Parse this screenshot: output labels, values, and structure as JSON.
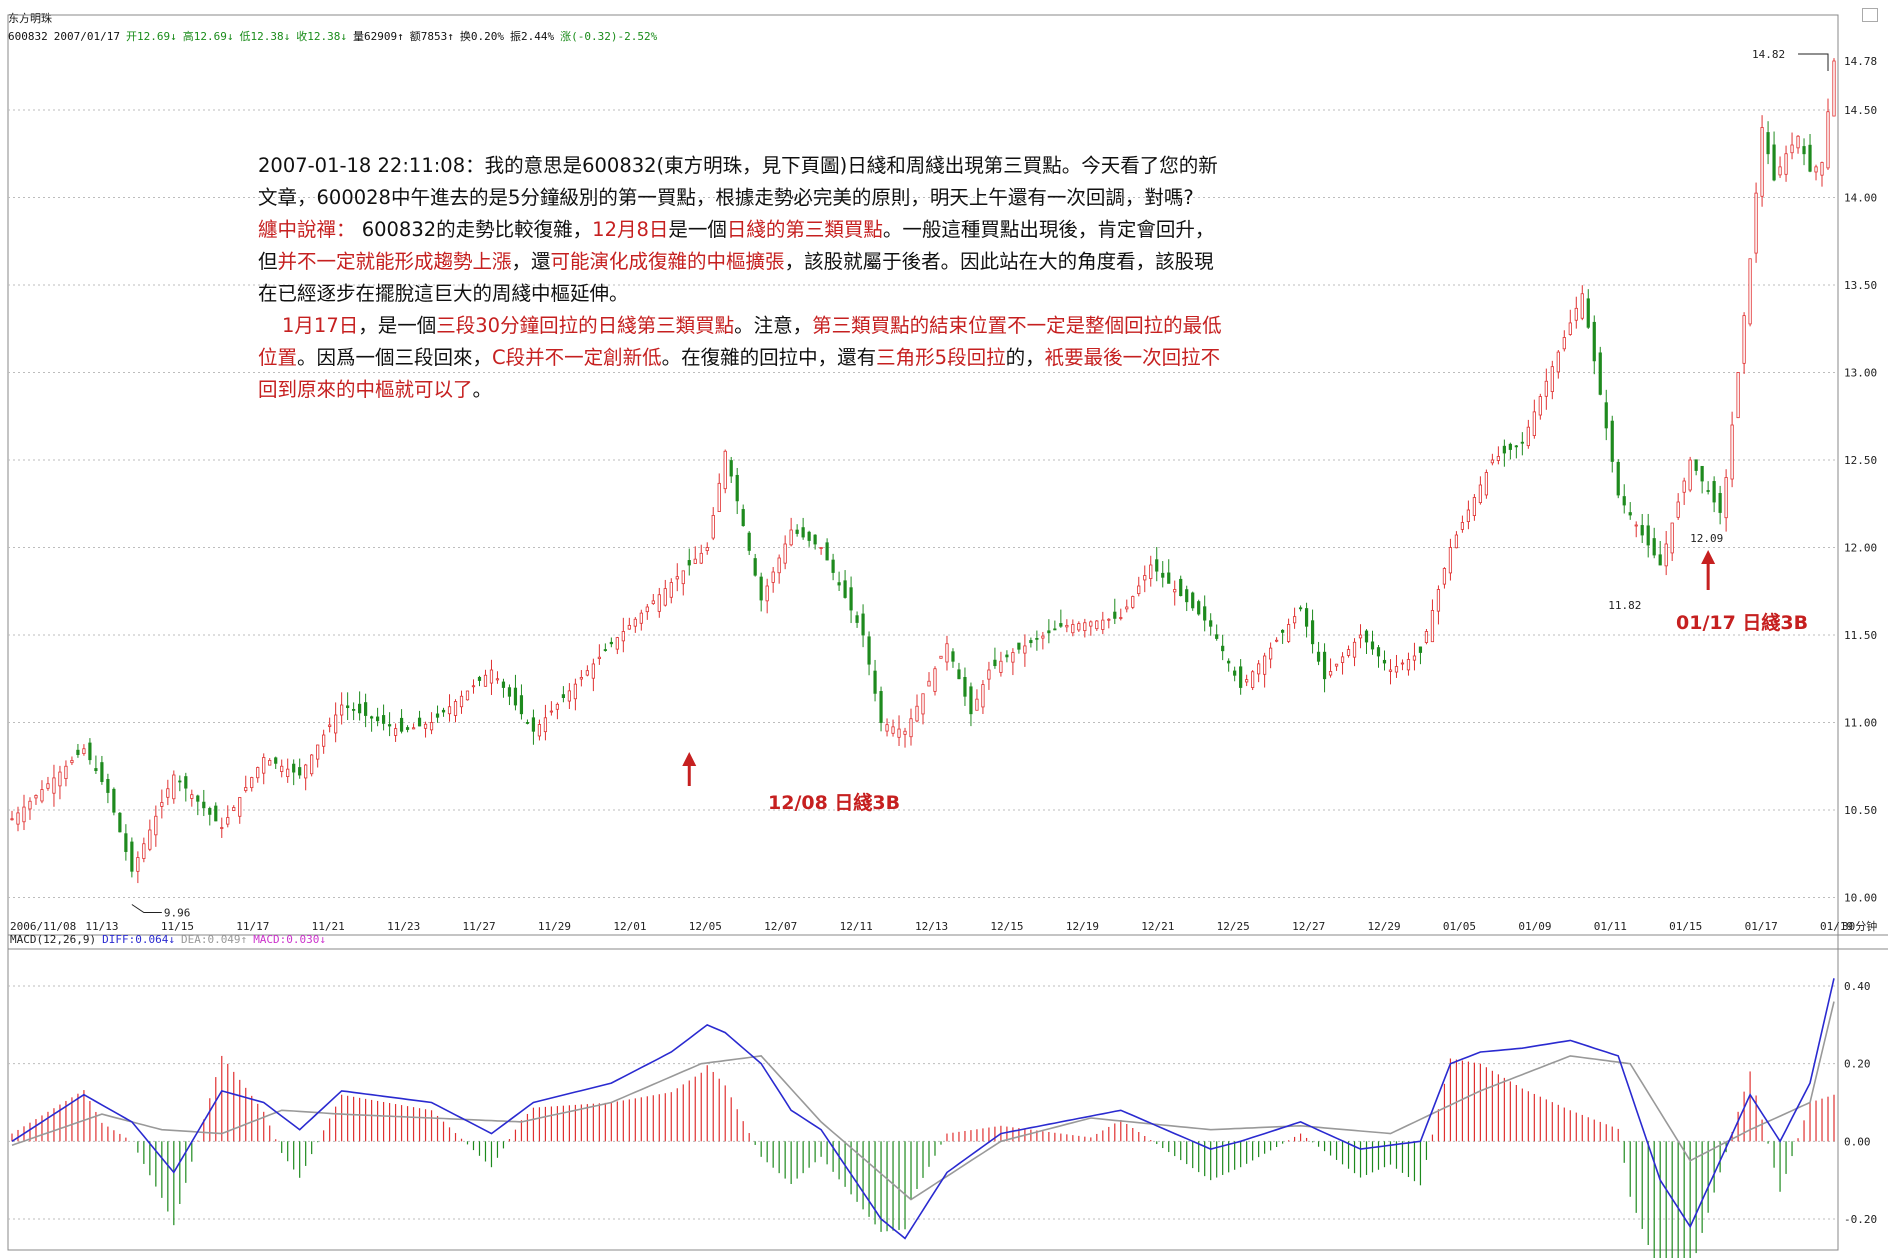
{
  "header": {
    "name": "东方明珠",
    "code": "600832",
    "date": "2007/01/17",
    "open": "开12.69↓",
    "high": "高12.69↓",
    "low": "低12.38↓",
    "close": "收12.38↓",
    "volume": "量62909↑",
    "amount": "额7853↑",
    "turnover": "换0.20%",
    "amplitude": "振2.44%",
    "change": "涨(-0.32)-2.52%"
  },
  "commentary": {
    "line1": "2007-01-18 22:11:08：我的意思是600832(東方明珠，見下頁圖)日綫和周綫出現第三買點。今天看了您的新",
    "line2": "文章，600028中午進去的是5分鐘級別的第一買點，根據走勢必完美的原則，明天上午還有一次回調，對嗎?",
    "line3_red1": "纏中說禪：",
    "line3_black1": " 600832的走勢比較復雜，",
    "line3_red2": "12月8日",
    "line3_black2": "是一個",
    "line3_red3": "日綫的第三類買點",
    "line3_black3": "。一般這種買點出現後，肯定會回升，",
    "line4_black1": "但",
    "line4_red1": "并不一定就能形成趨勢上漲",
    "line4_black2": "，還",
    "line4_red2": "可能演化成復雜的中樞擴張",
    "line4_black3": "，該股就屬于後者。因此站在大的角度看，該股現",
    "line5": "在已經逐步在擺脫這巨大的周綫中樞延伸。",
    "line6_red1": "1月17日",
    "line6_black1": "，是一個",
    "line6_red2": "三段30分鐘回拉的日綫第三類買點",
    "line6_black2": "。注意，",
    "line6_red3": "第三類買點的結束位置不一定是整個回拉的最低",
    "line7_red1": "位置",
    "line7_black1": "。因爲一個三段回來，",
    "line7_red2": "C段并不一定創新低",
    "line7_black2": "。在復雜的回拉中，還有",
    "line7_red3": "三角形5段回拉",
    "line7_black3": "的，",
    "line7_red4": "衹要最後一次回拉不",
    "line8_red1": "回到原來的中樞就可以了",
    "line8_black1": "。"
  },
  "annotations": {
    "buy1": "12/08 日綫3B",
    "buy2": "01/17 日綫3B",
    "low_label": "9.96",
    "mid_low_label": "11.82",
    "low2_label": "12.09",
    "high_label": "14.82",
    "last_label": "14.78"
  },
  "period_label": "30分钟",
  "macd_header": {
    "title": "MACD(12,26,9)",
    "diff": "DIFF:0.064↓",
    "dea": "DEA:0.049↑",
    "macd": "MACD:0.030↓"
  },
  "colors": {
    "up": "#e03030",
    "down": "#1e8a1e",
    "diff": "#2a2ad0",
    "dea": "#999999",
    "grid": "#bdbdbd",
    "callout": "#c62020"
  },
  "chart_data": [
    {
      "type": "candlestick",
      "title": "",
      "y_ticks": [
        "10.00",
        "10.50",
        "11.00",
        "11.50",
        "12.00",
        "12.50",
        "13.00",
        "13.50",
        "14.00",
        "14.50"
      ],
      "ylim": [
        9.9,
        14.9
      ],
      "x_ticks": [
        "2006/11/08",
        "11/13",
        "11/15",
        "11/17",
        "11/21",
        "11/23",
        "11/27",
        "11/29",
        "12/01",
        "12/05",
        "12/07",
        "12/11",
        "12/13",
        "12/15",
        "12/19",
        "12/21",
        "12/25",
        "12/27",
        "12/29",
        "01/05",
        "01/09",
        "01/11",
        "01/15",
        "01/17",
        "01/19"
      ],
      "close_path": {
        "x_index": [
          0,
          12,
          16,
          20,
          27,
          35,
          42,
          48,
          55,
          65,
          70,
          80,
          87,
          100,
          110,
          116,
          119,
          125,
          130,
          135,
          142,
          145,
          149,
          156,
          160,
          163,
          167,
          175,
          185,
          190,
          200,
          205,
          215,
          219,
          225,
          230,
          235,
          240,
          247,
          252,
          256,
          262,
          268,
          275,
          280,
          285
        ],
        "close": [
          10.45,
          10.85,
          10.6,
          10.15,
          10.7,
          10.4,
          10.8,
          10.7,
          11.1,
          10.95,
          11.0,
          11.3,
          10.95,
          11.45,
          11.8,
          12.0,
          12.55,
          11.7,
          12.1,
          12.0,
          11.5,
          11.0,
          10.95,
          11.45,
          11.05,
          11.3,
          11.4,
          11.55,
          11.6,
          11.9,
          11.55,
          11.2,
          11.65,
          11.25,
          11.5,
          11.3,
          11.4,
          12.0,
          12.5,
          12.6,
          12.95,
          13.45,
          12.3,
          11.9,
          12.5,
          12.2
        ]
      },
      "last_bars": {
        "x_index": [
          286,
          288,
          290,
          292,
          294,
          296,
          298,
          300,
          302,
          304
        ],
        "close": [
          12.4,
          13.0,
          13.65,
          14.4,
          14.1,
          14.25,
          14.35,
          14.15,
          14.2,
          14.78
        ]
      },
      "annotations": [
        {
          "text": "9.96",
          "value": 9.96
        },
        {
          "text": "11.82",
          "value": 11.82
        },
        {
          "text": "12.09",
          "value": 12.09
        },
        {
          "text": "14.82",
          "value": 14.82
        },
        {
          "text": "14.78",
          "value": 14.78
        },
        {
          "text": "12/08 日綫3B",
          "date": "12/08"
        },
        {
          "text": "01/17 日綫3B",
          "date": "01/17"
        }
      ]
    },
    {
      "type": "line+bar",
      "title": "MACD(12,26,9)",
      "y_ticks": [
        "0.40",
        "0.20",
        "0.00",
        "-0.20"
      ],
      "ylim": [
        -0.28,
        0.48
      ],
      "series": [
        {
          "name": "DIFF",
          "x_index": [
            0,
            12,
            20,
            27,
            35,
            42,
            48,
            55,
            70,
            80,
            87,
            100,
            110,
            116,
            119,
            125,
            130,
            135,
            145,
            149,
            156,
            165,
            175,
            185,
            200,
            205,
            215,
            225,
            235,
            240,
            245,
            252,
            260,
            268,
            275,
            280,
            285,
            290,
            295,
            300,
            304
          ],
          "values": [
            0.0,
            0.12,
            0.05,
            -0.08,
            0.13,
            0.1,
            0.03,
            0.13,
            0.1,
            0.02,
            0.1,
            0.15,
            0.23,
            0.3,
            0.28,
            0.2,
            0.08,
            0.03,
            -0.2,
            -0.25,
            -0.08,
            0.02,
            0.05,
            0.08,
            -0.02,
            0.0,
            0.05,
            -0.02,
            0.0,
            0.2,
            0.23,
            0.24,
            0.26,
            0.22,
            -0.1,
            -0.22,
            -0.05,
            0.12,
            0.0,
            0.15,
            0.42
          ]
        },
        {
          "name": "DEA",
          "x_index": [
            0,
            15,
            25,
            35,
            45,
            55,
            70,
            85,
            100,
            115,
            125,
            135,
            150,
            165,
            180,
            200,
            215,
            230,
            245,
            260,
            270,
            280,
            290,
            300,
            304
          ],
          "values": [
            -0.01,
            0.07,
            0.03,
            0.02,
            0.08,
            0.07,
            0.06,
            0.05,
            0.1,
            0.2,
            0.22,
            0.05,
            -0.15,
            0.0,
            0.06,
            0.03,
            0.04,
            0.02,
            0.13,
            0.22,
            0.2,
            -0.05,
            0.03,
            0.1,
            0.36
          ]
        }
      ]
    }
  ]
}
